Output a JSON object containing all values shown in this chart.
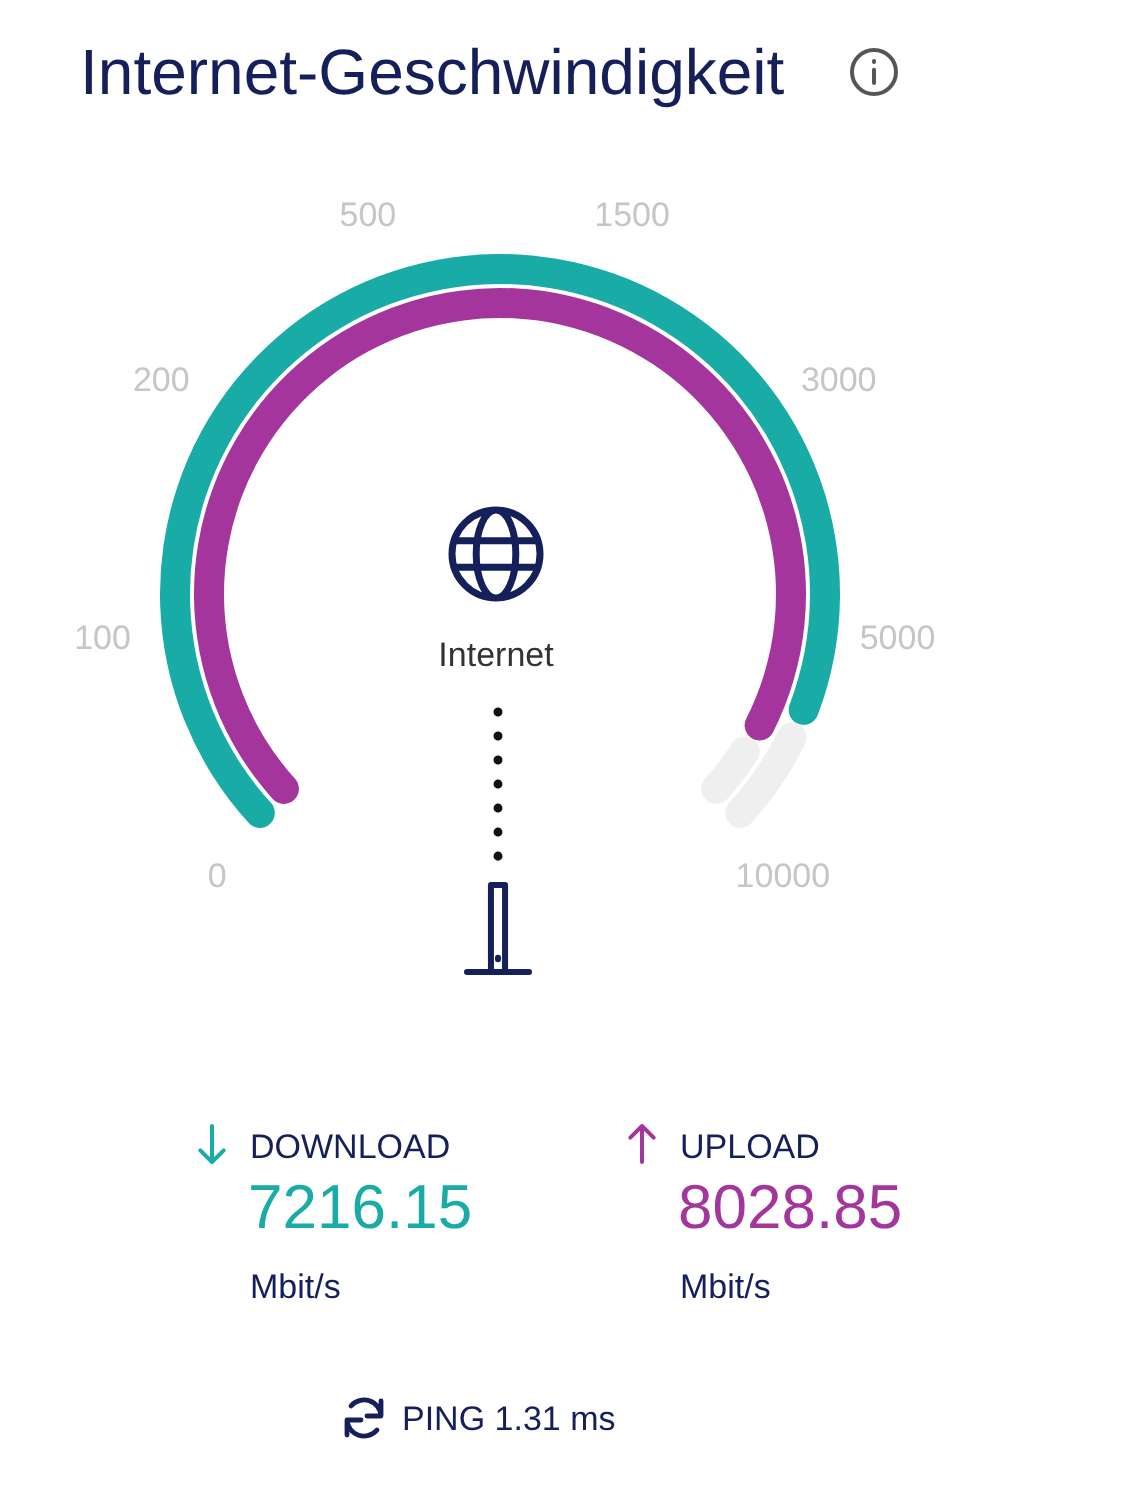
{
  "chart_data": {
    "type": "other",
    "title": "Internet-Geschwindigkeit",
    "categories": [
      "DOWNLOAD",
      "UPLOAD"
    ],
    "values": [
      7216.15,
      8028.85
    ],
    "colors": [
      "#19aba6",
      "#a3359d"
    ],
    "data_labels": true,
    "annotations": [
      "0",
      "100",
      "200",
      "500",
      "1500",
      "3000",
      "5000",
      "10000",
      "Internet",
      "Mbit/s",
      "Mbit/s",
      "PING 1.31 ms"
    ]
  }
}
